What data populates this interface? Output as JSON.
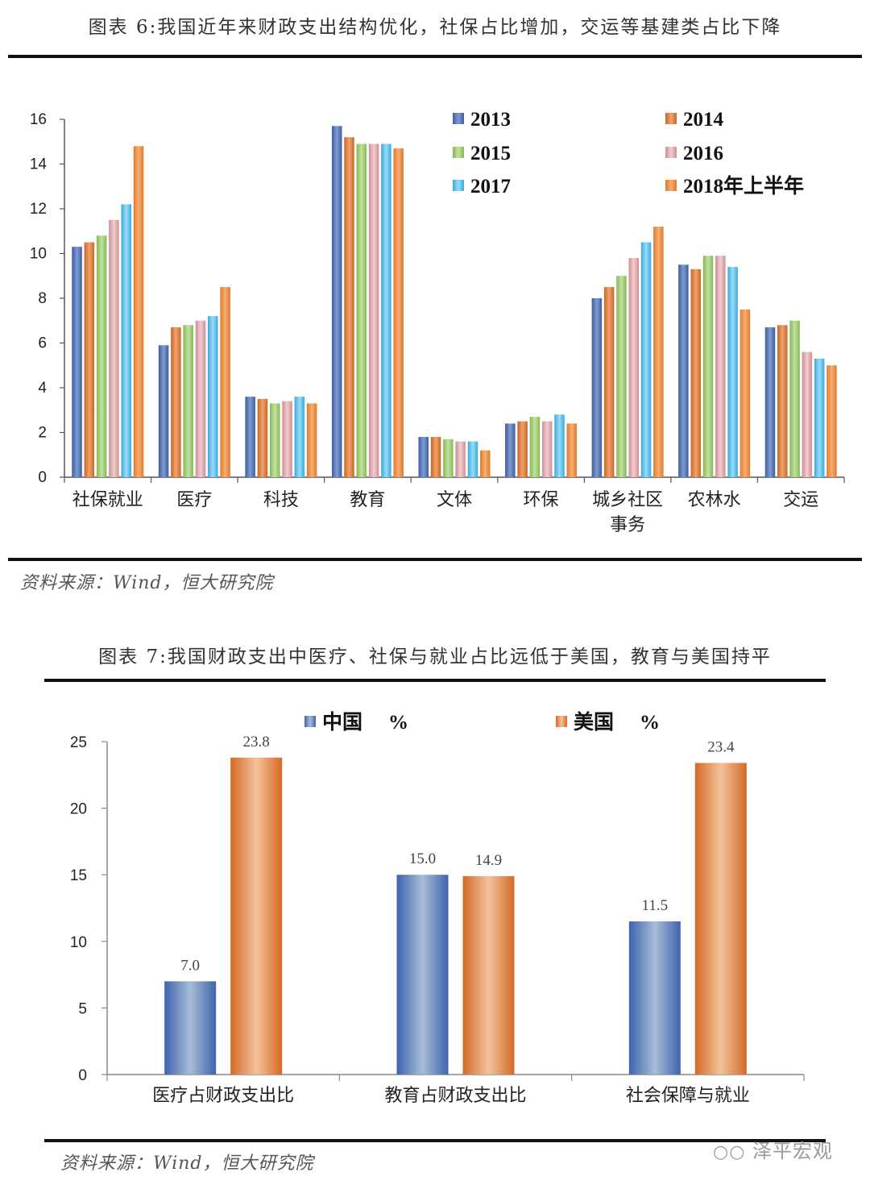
{
  "figure6": {
    "title": "图表 6:我国近年来财政支出结构优化，社保占比增加，交运等基建类占比下降",
    "source": "资料来源：Wind，恒大研究院"
  },
  "figure7": {
    "title": "图表 7:我国财政支出中医疗、社保与就业占比远低于美国，教育与美国持平",
    "source": "资料来源：Wind，恒大研究院"
  },
  "watermark": "泽平宏观",
  "chart_data": [
    {
      "type": "bar",
      "title": "",
      "categories": [
        "社保就业",
        "医疗",
        "科技",
        "教育",
        "文体",
        "环保",
        "城乡社区事务",
        "农林水",
        "交运"
      ],
      "category_lines": [
        [
          "社保就业"
        ],
        [
          "医疗"
        ],
        [
          "科技"
        ],
        [
          "教育"
        ],
        [
          "文体"
        ],
        [
          "环保"
        ],
        [
          "城乡社区",
          "事务"
        ],
        [
          "农林水"
        ],
        [
          "交运"
        ]
      ],
      "series": [
        {
          "name": "2013",
          "color": "#4f6fb3",
          "values": [
            10.3,
            5.9,
            3.6,
            15.7,
            1.8,
            2.4,
            8.0,
            9.5,
            6.7
          ]
        },
        {
          "name": "2014",
          "color": "#e07f3b",
          "values": [
            10.5,
            6.7,
            3.5,
            15.2,
            1.8,
            2.5,
            8.5,
            9.3,
            6.8
          ]
        },
        {
          "name": "2015",
          "color": "#9bcb6b",
          "values": [
            10.8,
            6.8,
            3.3,
            14.9,
            1.7,
            2.7,
            9.0,
            9.9,
            7.0
          ]
        },
        {
          "name": "2016",
          "color": "#e0a8ab",
          "values": [
            11.5,
            7.0,
            3.4,
            14.9,
            1.6,
            2.5,
            9.8,
            9.9,
            5.6
          ]
        },
        {
          "name": "2017",
          "color": "#53c0ee",
          "values": [
            12.2,
            7.2,
            3.6,
            14.9,
            1.6,
            2.8,
            10.5,
            9.4,
            5.3
          ]
        },
        {
          "name": "2018年上半年",
          "color": "#f08b3c",
          "values": [
            14.8,
            8.5,
            3.3,
            14.7,
            1.2,
            2.4,
            11.2,
            7.5,
            5.0
          ]
        }
      ],
      "y_ticks": [
        0,
        2,
        4,
        6,
        8,
        10,
        12,
        14,
        16
      ],
      "ylim": [
        0,
        16
      ],
      "grid": false,
      "legend_position": "top-right"
    },
    {
      "type": "bar",
      "title": "",
      "categories": [
        "医疗占财政支出比",
        "教育占财政支出比",
        "社会保障与就业"
      ],
      "series": [
        {
          "name": "中国  %",
          "color": "#4f73b8",
          "values": [
            7.0,
            15.0,
            11.5
          ],
          "labels": [
            "7.0",
            "15.0",
            "11.5"
          ]
        },
        {
          "name": "美国  %",
          "color": "#e27c34",
          "values": [
            23.8,
            14.9,
            23.4
          ],
          "labels": [
            "23.8",
            "14.9",
            "23.4"
          ]
        }
      ],
      "y_ticks": [
        0,
        5,
        10,
        15,
        20,
        25
      ],
      "ylim": [
        0,
        25
      ],
      "grid": false,
      "legend_position": "top"
    }
  ]
}
